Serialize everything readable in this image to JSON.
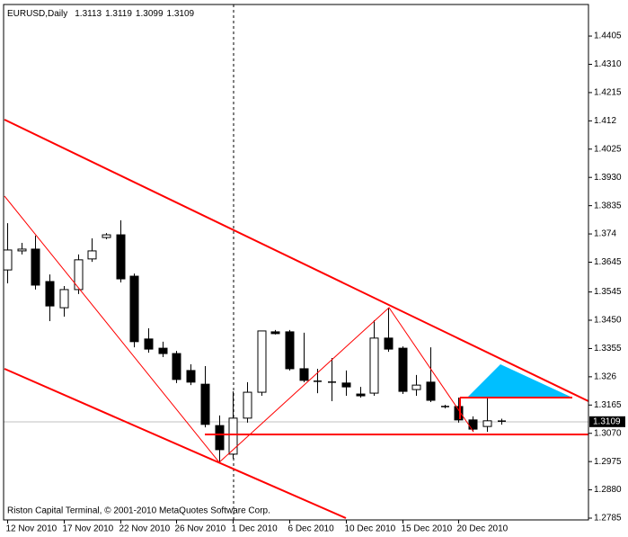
{
  "chart_data": {
    "type": "candlestick",
    "title": "EURUSD,Daily",
    "footer": "Riston Capital Terminal, © 2001-2010 MetaQuotes Software Corp.",
    "categories": [
      "12 Nov 2010",
      null,
      null,
      null,
      "17 Nov 2010",
      null,
      null,
      null,
      "22 Nov 2010",
      null,
      null,
      null,
      "26 Nov 2010",
      null,
      null,
      null,
      "1 Dec 2010",
      null,
      null,
      null,
      "6 Dec 2010",
      null,
      null,
      null,
      "10 Dec 2010",
      null,
      null,
      null,
      "15 Dec 2010",
      null,
      null,
      null,
      "20 Dec 2010",
      null,
      null,
      null
    ],
    "open": [
      1.3619,
      1.3683,
      1.3689,
      1.358,
      1.3492,
      1.3553,
      1.3656,
      1.3728,
      1.3737,
      1.3598,
      1.3387,
      1.3356,
      1.3338,
      1.3281,
      1.3235,
      1.3096,
      1.3,
      1.3121,
      1.3208,
      1.3411,
      1.3411,
      1.3287,
      1.3245,
      1.3242,
      1.3239,
      1.3202,
      1.3205,
      1.339,
      1.3356,
      1.3217,
      1.3242,
      1.316,
      1.316,
      1.3115,
      1.3093,
      1.3113
    ],
    "high": [
      1.3776,
      1.371,
      1.3734,
      1.3604,
      1.3565,
      1.3671,
      1.3725,
      1.3743,
      1.3786,
      1.3607,
      1.3423,
      1.3378,
      1.3347,
      1.3302,
      1.3296,
      1.313,
      1.3211,
      1.3242,
      1.3414,
      1.3417,
      1.3417,
      1.3408,
      1.3287,
      1.3323,
      1.3281,
      1.3226,
      1.345,
      1.3492,
      1.3362,
      1.3266,
      1.3359,
      1.3166,
      1.319,
      1.3127,
      1.319,
      1.3119
    ],
    "low": [
      1.3574,
      1.3671,
      1.3553,
      1.3447,
      1.3462,
      1.3538,
      1.3646,
      1.3722,
      1.3577,
      1.3359,
      1.3341,
      1.3326,
      1.3239,
      1.3232,
      1.309,
      1.2972,
      1.2985,
      1.3106,
      1.3196,
      1.3402,
      1.3281,
      1.3242,
      1.3205,
      1.3178,
      1.3196,
      1.319,
      1.3196,
      1.3344,
      1.3202,
      1.3196,
      1.3175,
      1.3154,
      1.3106,
      1.3075,
      1.3075,
      1.3099
    ],
    "close": [
      1.3686,
      1.3689,
      1.3568,
      1.3498,
      1.3553,
      1.3653,
      1.3683,
      1.3737,
      1.3589,
      1.3378,
      1.3353,
      1.3338,
      1.3251,
      1.3242,
      1.31,
      1.3015,
      1.3121,
      1.3208,
      1.3414,
      1.3405,
      1.3287,
      1.3248,
      1.3245,
      1.3242,
      1.3226,
      1.3196,
      1.339,
      1.3353,
      1.3211,
      1.3232,
      1.3181,
      1.316,
      1.3115,
      1.3084,
      1.3112,
      1.3109
    ],
    "up_color": "#ffffff",
    "down_color": "#000000",
    "ylim": [
      1.2779,
      1.4511
    ],
    "yticks": [
      1.4405,
      {
        "value": 1.431,
        "label": "1.4310"
      },
      1.4215,
      1.412,
      1.4025,
      {
        "value": 1.393,
        "label": "1.3930"
      },
      1.3835,
      1.374,
      1.3645,
      1.3545,
      {
        "value": 1.345,
        "label": "1.3450"
      },
      1.3355,
      1.326,
      1.3165,
      {
        "value": 1.307,
        "label": "1.3070"
      },
      1.2975,
      {
        "value": 1.288,
        "label": "1.2880"
      },
      1.2785
    ]
  }
}
